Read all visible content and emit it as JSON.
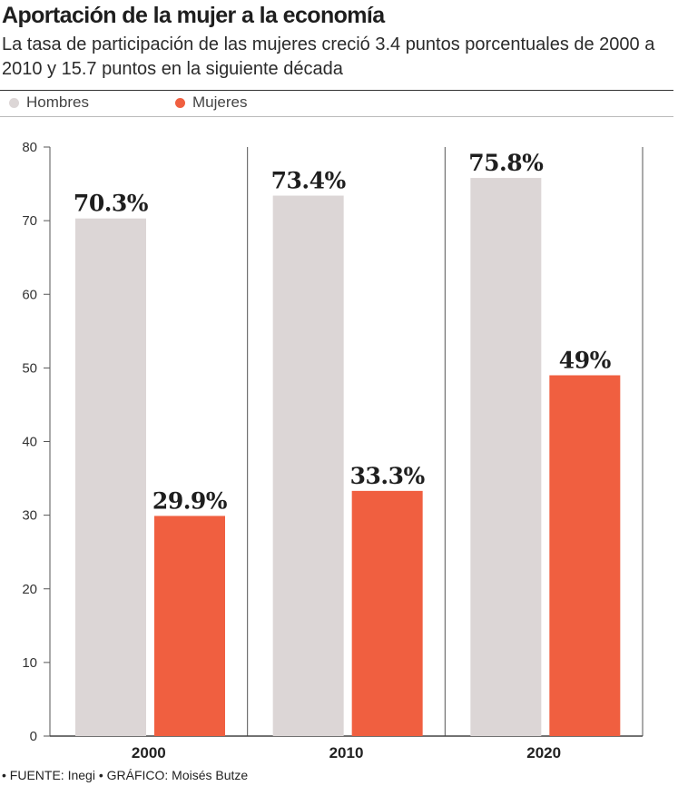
{
  "title": "Aportación de la mujer a la economía",
  "subtitle": "La tasa de participación de las mujeres creció 3.4 puntos porcentuales de 2000 a 2010 y 15.7 puntos en la siguiente década",
  "footer": "• FUENTE: Inegi • GRÁFICO: Moisés Butze",
  "colors": {
    "hombres": "#dcd6d6",
    "mujeres": "#f05f40"
  },
  "chart_data": {
    "type": "bar",
    "categories": [
      "2000",
      "2010",
      "2020"
    ],
    "series": [
      {
        "name": "Hombres",
        "values": [
          70.3,
          73.4,
          75.8
        ],
        "labels": [
          "70.3%",
          "73.4%",
          "75.8%"
        ]
      },
      {
        "name": "Mujeres",
        "values": [
          29.9,
          33.3,
          49
        ],
        "labels": [
          "29.9%",
          "33.3%",
          "49%"
        ]
      }
    ],
    "ylim": [
      0,
      80
    ],
    "yticks": [
      0,
      10,
      20,
      30,
      40,
      50,
      60,
      70,
      80
    ],
    "legend_position": "top-left",
    "grid": false
  }
}
